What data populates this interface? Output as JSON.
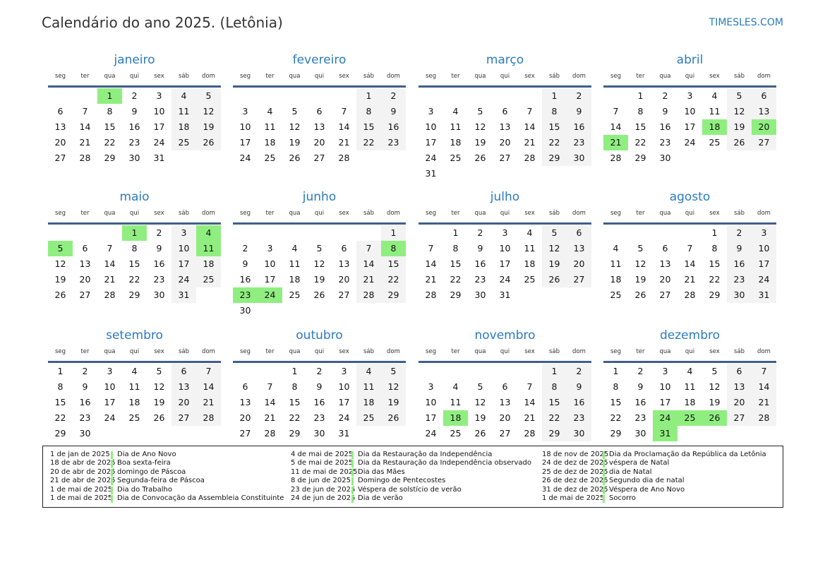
{
  "title": "Calendário do ano 2025. (Letônia)",
  "brand": "TIMESLES.COM",
  "year": 2025,
  "weekdays": [
    "seg",
    "ter",
    "qua",
    "qui",
    "sex",
    "sáb",
    "dom"
  ],
  "months": [
    "janeiro",
    "fevereiro",
    "março",
    "abril",
    "maio",
    "junho",
    "julho",
    "agosto",
    "setembro",
    "outubro",
    "novembro",
    "dezembro"
  ],
  "colors": {
    "accent": "#2a7bc0",
    "holiday": "#90ee80",
    "weekend": "#f3f3f3",
    "rule": "#3e5f8a"
  },
  "highlighted_dates": [
    [
      1,
      1
    ],
    [
      4,
      18
    ],
    [
      4,
      20
    ],
    [
      4,
      21
    ],
    [
      5,
      1
    ],
    [
      5,
      4
    ],
    [
      5,
      5
    ],
    [
      5,
      11
    ],
    [
      6,
      8
    ],
    [
      6,
      23
    ],
    [
      6,
      24
    ],
    [
      11,
      18
    ],
    [
      12,
      24
    ],
    [
      12,
      25
    ],
    [
      12,
      26
    ],
    [
      12,
      31
    ]
  ],
  "holidays": [
    [
      {
        "date": "1 de jan de 2025",
        "name": "Dia de Ano Novo"
      },
      {
        "date": "18 de abr de 2025",
        "name": "Boa sexta-feira"
      },
      {
        "date": "20 de abr de 2025",
        "name": "domingo de Páscoa"
      },
      {
        "date": "21 de abr de 2025",
        "name": "Segunda-feira de Páscoa"
      },
      {
        "date": "1 de mai de 2025",
        "name": "Dia do Trabalho"
      },
      {
        "date": "1 de mai de 2025",
        "name": "Dia de Convocação da Assembleia Constituinte"
      }
    ],
    [
      {
        "date": "4 de mai de 2025",
        "name": "Dia da Restauração da Independência"
      },
      {
        "date": "5 de mai de 2025",
        "name": "Dia da Restauração da Independência observado"
      },
      {
        "date": "11 de mai de 2025",
        "name": "Dia das Mães"
      },
      {
        "date": "8 de jun de 2025",
        "name": "Domingo de Pentecostes"
      },
      {
        "date": "23 de jun de 2025",
        "name": "Véspera de solstício de verão"
      },
      {
        "date": "24 de jun de 2025",
        "name": "Dia de verão"
      }
    ],
    [
      {
        "date": "18 de nov de 2025",
        "name": "Dia da Proclamação da República da Letônia"
      },
      {
        "date": "24 de dez de 2025",
        "name": "véspera de Natal"
      },
      {
        "date": "25 de dez de 2025",
        "name": "dia de Natal"
      },
      {
        "date": "26 de dez de 2025",
        "name": "Segundo dia de natal"
      },
      {
        "date": "31 de dez de 2025",
        "name": "Véspera de Ano Novo"
      },
      {
        "date": "1 de mai de 2025",
        "name": "Socorro"
      }
    ]
  ]
}
